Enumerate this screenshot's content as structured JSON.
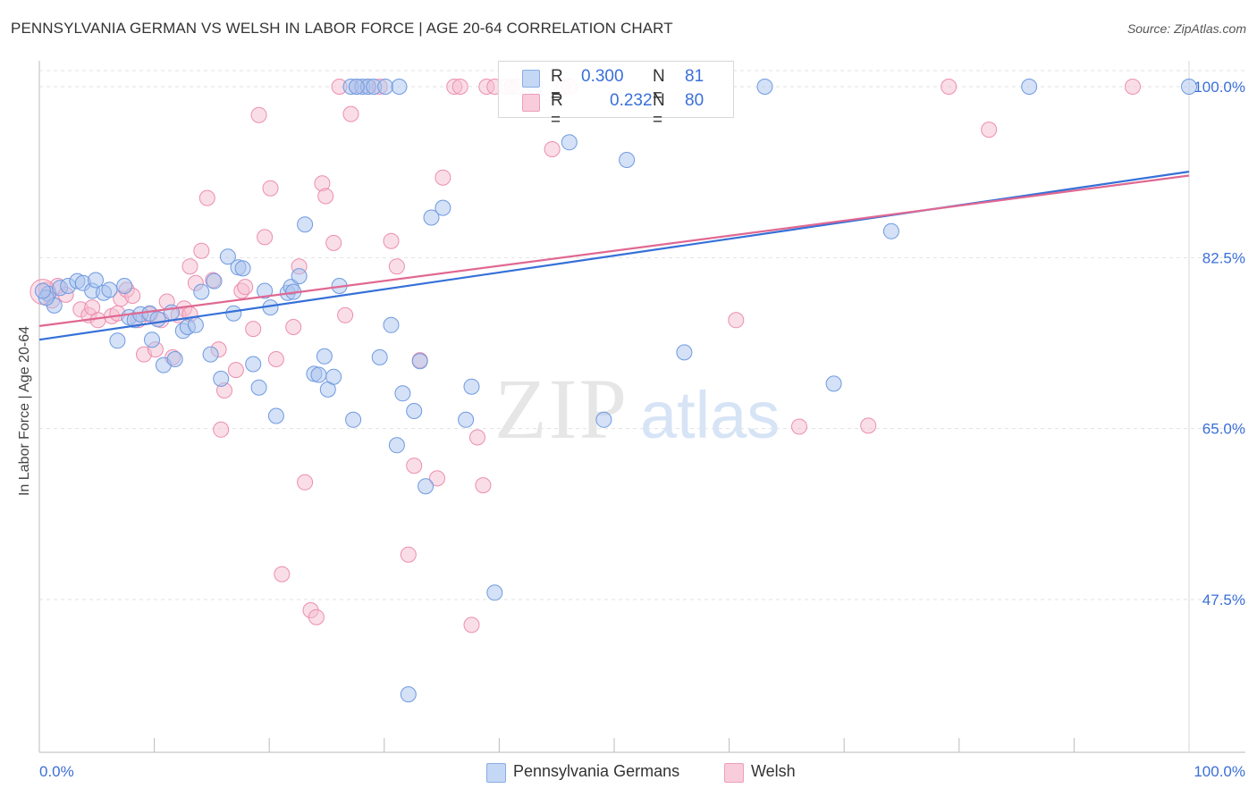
{
  "title": "PENNSYLVANIA GERMAN VS WELSH IN LABOR FORCE | AGE 20-64 CORRELATION CHART",
  "source": "Source: ZipAtlas.com",
  "watermark": {
    "zip": "ZIP",
    "atlas": "atlas"
  },
  "legend": {
    "r_key": "R =",
    "n_key": "N =",
    "rows": [
      {
        "r": "0.300",
        "n": "81"
      },
      {
        "r": "0.232",
        "n": "80"
      }
    ]
  },
  "colors": {
    "blue_fill": "#a9c4ee",
    "blue_stroke": "#6f9ae0",
    "blue_line": "#3570d8",
    "pink_fill": "#f6bdd0",
    "pink_stroke": "#ec8eaf",
    "pink_line": "#e06892",
    "tick_label": "#3a6fd8",
    "grid": "#e2e2e2"
  },
  "chart_data": {
    "type": "scatter",
    "title": "PENNSYLVANIA GERMAN VS WELSH IN LABOR FORCE | AGE 20-64 CORRELATION CHART",
    "xlabel": "",
    "ylabel": "In Labor Force | Age 20-64",
    "xlim": [
      0,
      100
    ],
    "ylim": [
      34,
      102
    ],
    "x_tick_labels": [
      "0.0%",
      "100.0%"
    ],
    "y_ticks": [
      47.5,
      65.0,
      82.5,
      100.0
    ],
    "y_tick_labels": [
      "47.5%",
      "65.0%",
      "82.5%",
      "100.0%"
    ],
    "grid": true,
    "series": [
      {
        "name": "Pennsylvania Germans",
        "trend": [
          [
            0,
            74.1
          ],
          [
            100,
            91.3
          ]
        ],
        "points": [
          [
            0.8,
            78.8
          ],
          [
            1.3,
            77.6
          ],
          [
            1.8,
            79.4
          ],
          [
            2.5,
            79.6
          ],
          [
            3.3,
            80.1
          ],
          [
            3.8,
            79.9
          ],
          [
            4.6,
            79.1
          ],
          [
            4.9,
            80.2
          ],
          [
            5.6,
            78.9
          ],
          [
            6.1,
            79.2
          ],
          [
            7.4,
            79.6
          ],
          [
            6.8,
            74.0
          ],
          [
            7.8,
            76.4
          ],
          [
            8.3,
            76.1
          ],
          [
            8.8,
            76.7
          ],
          [
            9.6,
            76.8
          ],
          [
            9.8,
            74.1
          ],
          [
            10.3,
            76.2
          ],
          [
            10.8,
            71.5
          ],
          [
            11.8,
            72.1
          ],
          [
            11.5,
            76.9
          ],
          [
            12.5,
            75.0
          ],
          [
            12.9,
            75.4
          ],
          [
            13.6,
            75.6
          ],
          [
            14.1,
            79.0
          ],
          [
            14.9,
            72.6
          ],
          [
            15.2,
            80.1
          ],
          [
            15.8,
            70.1
          ],
          [
            16.4,
            82.6
          ],
          [
            16.9,
            76.8
          ],
          [
            17.3,
            81.5
          ],
          [
            17.7,
            81.4
          ],
          [
            18.6,
            71.6
          ],
          [
            19.1,
            69.2
          ],
          [
            19.6,
            79.1
          ],
          [
            20.1,
            77.4
          ],
          [
            20.6,
            66.3
          ],
          [
            21.6,
            78.9
          ],
          [
            21.9,
            79.5
          ],
          [
            22.6,
            80.6
          ],
          [
            23.1,
            85.9
          ],
          [
            23.9,
            70.6
          ],
          [
            24.3,
            70.5
          ],
          [
            24.8,
            72.4
          ],
          [
            25.1,
            69.0
          ],
          [
            25.6,
            70.3
          ],
          [
            26.1,
            79.6
          ],
          [
            27.3,
            65.9
          ],
          [
            27.1,
            100.0
          ],
          [
            28.1,
            100.0
          ],
          [
            28.6,
            100.0
          ],
          [
            29.1,
            100.0
          ],
          [
            30.1,
            100.0
          ],
          [
            29.6,
            72.3
          ],
          [
            30.6,
            75.6
          ],
          [
            31.1,
            63.3
          ],
          [
            31.6,
            68.6
          ],
          [
            32.6,
            66.8
          ],
          [
            32.1,
            37.8
          ],
          [
            33.1,
            71.9
          ],
          [
            33.6,
            59.1
          ],
          [
            34.1,
            86.6
          ],
          [
            35.1,
            87.6
          ],
          [
            37.1,
            65.9
          ],
          [
            37.6,
            69.3
          ],
          [
            39.6,
            48.2
          ],
          [
            43.1,
            100.0
          ],
          [
            46.1,
            94.3
          ],
          [
            49.1,
            65.9
          ],
          [
            51.1,
            92.5
          ],
          [
            56.1,
            72.8
          ],
          [
            63.1,
            100.0
          ],
          [
            69.1,
            69.6
          ],
          [
            74.1,
            85.2
          ],
          [
            86.1,
            100.0
          ],
          [
            100.0,
            100.0
          ],
          [
            27.6,
            100.0
          ],
          [
            31.3,
            100.0
          ],
          [
            22.1,
            79.0
          ],
          [
            0.6,
            78.4
          ],
          [
            0.3,
            79.1
          ]
        ]
      },
      {
        "name": "Welsh",
        "trend": [
          [
            0,
            75.5
          ],
          [
            100,
            90.9
          ]
        ],
        "points": [
          [
            0.6,
            79.2
          ],
          [
            1.1,
            78.1
          ],
          [
            1.6,
            79.6
          ],
          [
            2.3,
            78.7
          ],
          [
            3.6,
            77.2
          ],
          [
            4.3,
            76.6
          ],
          [
            4.6,
            77.4
          ],
          [
            5.1,
            76.1
          ],
          [
            6.3,
            76.5
          ],
          [
            6.8,
            76.8
          ],
          [
            7.1,
            78.3
          ],
          [
            7.6,
            79.2
          ],
          [
            8.1,
            78.6
          ],
          [
            8.6,
            76.1
          ],
          [
            9.1,
            72.6
          ],
          [
            9.6,
            76.7
          ],
          [
            10.1,
            73.1
          ],
          [
            10.6,
            76.1
          ],
          [
            11.1,
            78.0
          ],
          [
            11.6,
            72.3
          ],
          [
            12.6,
            77.3
          ],
          [
            12.1,
            76.6
          ],
          [
            13.1,
            76.7
          ],
          [
            13.6,
            79.9
          ],
          [
            14.1,
            83.2
          ],
          [
            14.6,
            88.6
          ],
          [
            15.1,
            80.2
          ],
          [
            15.6,
            73.1
          ],
          [
            16.1,
            68.9
          ],
          [
            15.8,
            64.9
          ],
          [
            17.1,
            71.0
          ],
          [
            17.6,
            79.1
          ],
          [
            17.9,
            79.5
          ],
          [
            18.6,
            75.2
          ],
          [
            19.1,
            97.1
          ],
          [
            19.6,
            84.6
          ],
          [
            20.1,
            89.6
          ],
          [
            20.6,
            72.1
          ],
          [
            21.1,
            50.1
          ],
          [
            22.1,
            75.4
          ],
          [
            22.6,
            81.6
          ],
          [
            23.1,
            59.5
          ],
          [
            23.6,
            46.4
          ],
          [
            24.1,
            45.7
          ],
          [
            24.6,
            90.1
          ],
          [
            24.9,
            88.8
          ],
          [
            25.6,
            84.0
          ],
          [
            26.1,
            100.0
          ],
          [
            26.6,
            76.6
          ],
          [
            27.1,
            97.2
          ],
          [
            27.6,
            100.0
          ],
          [
            28.6,
            100.0
          ],
          [
            29.6,
            100.0
          ],
          [
            30.6,
            84.2
          ],
          [
            31.1,
            81.6
          ],
          [
            32.1,
            52.1
          ],
          [
            32.6,
            61.2
          ],
          [
            33.1,
            72.0
          ],
          [
            34.6,
            59.9
          ],
          [
            35.1,
            90.7
          ],
          [
            36.1,
            100.0
          ],
          [
            36.6,
            100.0
          ],
          [
            38.1,
            64.1
          ],
          [
            38.6,
            59.2
          ],
          [
            38.9,
            100.0
          ],
          [
            39.6,
            100.0
          ],
          [
            40.6,
            100.0
          ],
          [
            41.1,
            100.0
          ],
          [
            41.6,
            100.0
          ],
          [
            44.6,
            93.6
          ],
          [
            45.6,
            100.0
          ],
          [
            46.1,
            100.0
          ],
          [
            60.6,
            76.1
          ],
          [
            66.1,
            65.2
          ],
          [
            72.1,
            65.3
          ],
          [
            79.1,
            100.0
          ],
          [
            82.6,
            95.6
          ],
          [
            95.1,
            100.0
          ],
          [
            37.6,
            44.9
          ],
          [
            13.1,
            81.6
          ]
        ]
      }
    ]
  },
  "legend_bottom": [
    "Pennsylvania Germans",
    "Welsh"
  ]
}
